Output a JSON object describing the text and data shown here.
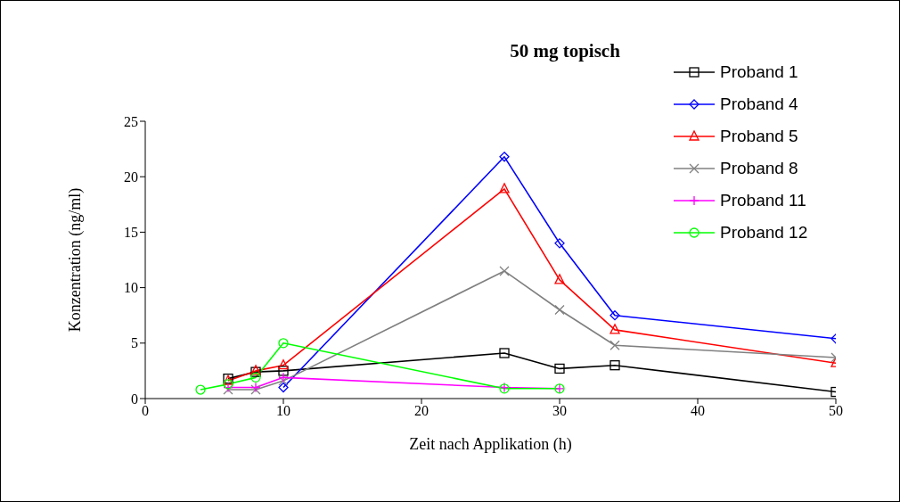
{
  "chart_data": {
    "type": "line",
    "title": "50 mg topisch",
    "xlabel": "Zeit nach Applikation (h)",
    "ylabel": "Konzentration (ng/ml)",
    "xlim": [
      0,
      50
    ],
    "xticks": [
      0,
      10,
      20,
      30,
      40,
      50
    ],
    "ylim": [
      0,
      25
    ],
    "yticks": [
      0,
      5,
      10,
      15,
      20,
      25
    ],
    "grid": false,
    "legend": "top right",
    "series": [
      {
        "name": "Proband 1",
        "color": "#000000",
        "marker": "square",
        "x": [
          6,
          8,
          10,
          26,
          30,
          34,
          50
        ],
        "values": [
          1.8,
          2.4,
          2.5,
          4.1,
          2.7,
          3.0,
          0.6
        ]
      },
      {
        "name": "Proband 4",
        "color": "#0000ff",
        "marker": "diamond",
        "x": [
          10,
          26,
          30,
          34,
          50
        ],
        "values": [
          1.0,
          21.8,
          14.0,
          7.5,
          5.4
        ]
      },
      {
        "name": "Proband 5",
        "color": "#ff0000",
        "marker": "triangle",
        "x": [
          6,
          8,
          10,
          26,
          30,
          34,
          50
        ],
        "values": [
          1.6,
          2.5,
          3.0,
          18.9,
          10.7,
          6.2,
          3.2
        ]
      },
      {
        "name": "Proband 8",
        "color": "#808080",
        "marker": "cross",
        "x": [
          6,
          8,
          10,
          26,
          30,
          34,
          50
        ],
        "values": [
          0.8,
          0.8,
          1.6,
          11.5,
          8.0,
          4.8,
          3.7
        ]
      },
      {
        "name": "Proband 11",
        "color": "#ff00ff",
        "marker": "plus",
        "x": [
          6,
          8,
          10,
          26,
          30
        ],
        "values": [
          1.0,
          1.0,
          1.9,
          1.0,
          0.9
        ]
      },
      {
        "name": "Proband 12",
        "color": "#00ff00",
        "marker": "circle",
        "x": [
          4,
          6,
          8,
          10,
          26,
          30
        ],
        "values": [
          0.8,
          1.3,
          1.9,
          5.0,
          0.9,
          0.9
        ]
      }
    ]
  }
}
